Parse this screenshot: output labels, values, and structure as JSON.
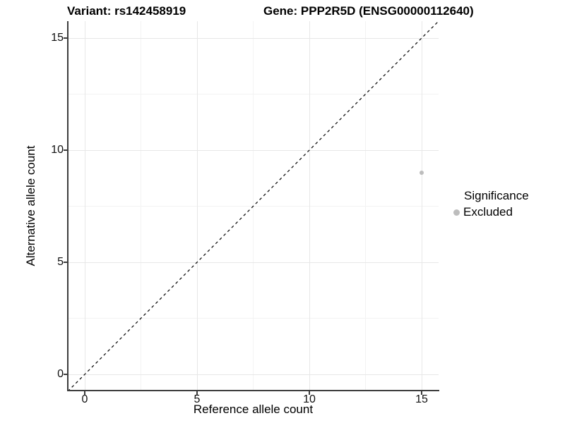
{
  "titles": {
    "variant": "Variant: rs142458919",
    "gene": "Gene: PPP2R5D (ENSG00000112640)"
  },
  "axes": {
    "x": {
      "label": "Reference allele count",
      "tick_labels": [
        "0",
        "5",
        "10",
        "15"
      ]
    },
    "y": {
      "label": "Alternative allele count",
      "tick_labels": [
        "0",
        "5",
        "10",
        "15"
      ]
    }
  },
  "legend": {
    "title": "Significance",
    "items": [
      {
        "label": "Excluded",
        "color": "#bdbdbd"
      }
    ]
  },
  "chart_data": {
    "type": "scatter",
    "title_left": "Variant: rs142458919",
    "title_right": "Gene: PPP2R5D (ENSG00000112640)",
    "xlabel": "Reference allele count",
    "ylabel": "Alternative allele count",
    "xlim": [
      -0.75,
      15.75
    ],
    "ylim": [
      -0.75,
      15.75
    ],
    "x_ticks": [
      0,
      5,
      10,
      15
    ],
    "y_ticks": [
      0,
      5,
      10,
      15
    ],
    "grid": "major and minor, light gray on white",
    "legend_position": "right",
    "series": [
      {
        "name": "Excluded",
        "color": "#bdbdbd",
        "points": [
          {
            "x": 15,
            "y": 9
          }
        ]
      }
    ],
    "reference_line": {
      "type": "identity y=x",
      "style": "dashed",
      "color": "#000000"
    }
  },
  "colors": {
    "excluded": "#bdbdbd",
    "axis_line": "#3c3c3c",
    "grid_major": "#e7e7e7",
    "grid_minor": "#f3f3f3",
    "background": "#ffffff"
  }
}
